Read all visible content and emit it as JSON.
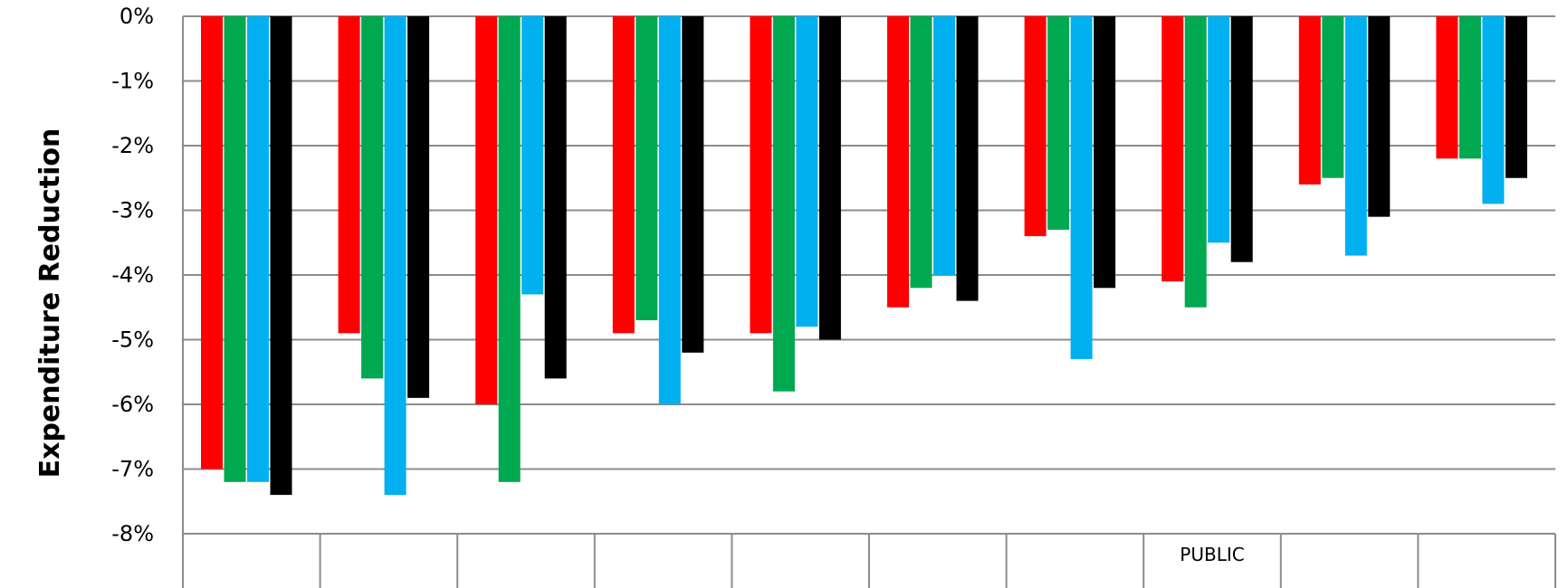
{
  "chart_data": {
    "type": "bar",
    "ylabel": "Expenditure Reduction",
    "ylim": [
      -8,
      0
    ],
    "yticks": [
      0,
      -1,
      -2,
      -3,
      -4,
      -5,
      -6,
      -7,
      -8
    ],
    "ytick_labels": [
      "0%",
      "-1%",
      "-2%",
      "-3%",
      "-4%",
      "-5%",
      "-6%",
      "-7%",
      "-8%"
    ],
    "grid": true,
    "legend": "none",
    "categories": [
      "",
      "",
      "",
      "",
      "",
      "",
      "",
      "PUBLIC",
      "",
      ""
    ],
    "colors": [
      "#ff0000",
      "#00a850",
      "#00b0f0",
      "#000000"
    ],
    "series": [
      {
        "values": [
          -7.0,
          -4.9,
          -6.0,
          -4.9,
          -4.9,
          -4.5,
          -3.4,
          -4.1,
          -2.6,
          -2.2
        ]
      },
      {
        "values": [
          -7.2,
          -5.6,
          -7.2,
          -4.7,
          -5.8,
          -4.2,
          -3.3,
          -4.5,
          -2.5,
          -2.2
        ]
      },
      {
        "values": [
          -7.2,
          -7.4,
          -4.3,
          -6.0,
          -4.8,
          -4.0,
          -5.3,
          -3.5,
          -3.7,
          -2.9
        ]
      },
      {
        "values": [
          -7.4,
          -5.9,
          -5.6,
          -5.2,
          -5.0,
          -4.4,
          -4.2,
          -3.8,
          -3.1,
          -2.5
        ]
      }
    ]
  }
}
